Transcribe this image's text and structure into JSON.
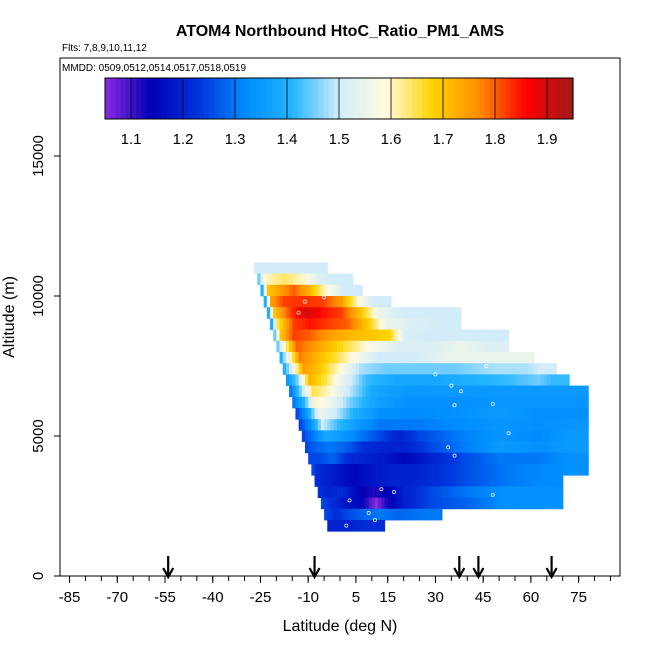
{
  "header": {
    "title": "ATOM4 Northbound HtoC_Ratio_PM1_AMS",
    "flights_note": "Flts: 7,8,9,10,11,12",
    "dates_note": "MMDD: 0509,0512,0514,0517,0518,0519"
  },
  "chart_data": {
    "type": "heatmap",
    "title": "ATOM4 Northbound HtoC_Ratio_PM1_AMS",
    "xlabel": "Latitude (deg N)",
    "ylabel": "Altitude (m)",
    "xlim": [
      -88,
      88
    ],
    "ylim": [
      0,
      18500
    ],
    "x_ticks": [
      -85,
      -70,
      -55,
      -40,
      -25,
      -10,
      5,
      15,
      30,
      45,
      60,
      75
    ],
    "x_tick_labels": [
      "-85",
      "-70",
      "-55",
      "-40",
      "-25",
      "-10",
      "5",
      "15",
      "30",
      "45",
      "60",
      "75"
    ],
    "x_minor_step": 5,
    "y_ticks": [
      0,
      5000,
      10000,
      15000
    ],
    "y_tick_labels": [
      "0",
      "5000",
      "10000",
      "15000"
    ],
    "colorbar": {
      "min": 1.05,
      "max": 1.95,
      "ticks": [
        1.1,
        1.2,
        1.3,
        1.4,
        1.5,
        1.6,
        1.7,
        1.8,
        1.9
      ],
      "tick_labels": [
        "1.1",
        "1.2",
        "1.3",
        "1.4",
        "1.5",
        "1.6",
        "1.7",
        "1.8",
        "1.9"
      ],
      "colors": [
        "#8a2be2",
        "#0000b4",
        "#0033dd",
        "#008cff",
        "#22b4ff",
        "#d2ecfa",
        "#fffbe0",
        "#ffd400",
        "#ff8c00",
        "#ff0000",
        "#9e1a1a"
      ]
    },
    "arrow_latitudes": [
      -54,
      -8,
      37.5,
      43.5,
      66.5
    ],
    "bands": [
      {
        "alt_min": 10800,
        "alt_max": 11200,
        "cells": [
          [
            -27,
            1.5
          ],
          [
            -10,
            1.5
          ]
        ]
      },
      {
        "alt_min": 10400,
        "alt_max": 10800,
        "cells": [
          [
            -26,
            1.45
          ],
          [
            -24,
            1.6
          ],
          [
            -18,
            1.64
          ],
          [
            -12,
            1.6
          ],
          [
            -7,
            1.52
          ],
          [
            -2,
            1.5
          ]
        ]
      },
      {
        "alt_min": 10000,
        "alt_max": 10400,
        "cells": [
          [
            -25,
            1.4
          ],
          [
            -23,
            1.7
          ],
          [
            -19,
            1.75
          ],
          [
            -15,
            1.8
          ],
          [
            -10,
            1.72
          ],
          [
            -5,
            1.6
          ],
          [
            1,
            1.5
          ]
        ]
      },
      {
        "alt_min": 9600,
        "alt_max": 10000,
        "cells": [
          [
            -24,
            1.4
          ],
          [
            -22,
            1.75
          ],
          [
            -18,
            1.82
          ],
          [
            -12,
            1.83
          ],
          [
            -6,
            1.82
          ],
          [
            0,
            1.75
          ],
          [
            5,
            1.6
          ],
          [
            10,
            1.5
          ]
        ]
      },
      {
        "alt_min": 9200,
        "alt_max": 9600,
        "cells": [
          [
            -23,
            1.4
          ],
          [
            -21,
            1.7
          ],
          [
            -16,
            1.82
          ],
          [
            -11,
            1.9
          ],
          [
            -6,
            1.85
          ],
          [
            0,
            1.82
          ],
          [
            6,
            1.7
          ],
          [
            12,
            1.55
          ],
          [
            20,
            1.5
          ],
          [
            32,
            1.5
          ]
        ]
      },
      {
        "alt_min": 8800,
        "alt_max": 9200,
        "cells": [
          [
            -22,
            1.4
          ],
          [
            -20,
            1.65
          ],
          [
            -15,
            1.82
          ],
          [
            -10,
            1.85
          ],
          [
            -4,
            1.82
          ],
          [
            2,
            1.8
          ],
          [
            8,
            1.7
          ],
          [
            14,
            1.55
          ],
          [
            22,
            1.52
          ],
          [
            32,
            1.5
          ]
        ]
      },
      {
        "alt_min": 8400,
        "alt_max": 8800,
        "cells": [
          [
            -21,
            1.45
          ],
          [
            -19,
            1.7
          ],
          [
            -15,
            1.82
          ],
          [
            -10,
            1.8
          ],
          [
            -4,
            1.75
          ],
          [
            2,
            1.72
          ],
          [
            8,
            1.7
          ],
          [
            15,
            1.68
          ],
          [
            20,
            1.52
          ],
          [
            26,
            1.5
          ],
          [
            38,
            1.5
          ],
          [
            47,
            1.5
          ]
        ]
      },
      {
        "alt_min": 8000,
        "alt_max": 8400,
        "cells": [
          [
            -20,
            1.45
          ],
          [
            -18,
            1.6
          ],
          [
            -14,
            1.8
          ],
          [
            -9,
            1.76
          ],
          [
            -3,
            1.7
          ],
          [
            3,
            1.64
          ],
          [
            10,
            1.57
          ],
          [
            18,
            1.52
          ],
          [
            28,
            1.52
          ],
          [
            38,
            1.55
          ],
          [
            47,
            1.52
          ]
        ]
      },
      {
        "alt_min": 7600,
        "alt_max": 8000,
        "cells": [
          [
            -19,
            1.4
          ],
          [
            -17,
            1.55
          ],
          [
            -13,
            1.78
          ],
          [
            -8,
            1.72
          ],
          [
            -2,
            1.66
          ],
          [
            4,
            1.58
          ],
          [
            12,
            1.5
          ],
          [
            22,
            1.5
          ],
          [
            34,
            1.55
          ],
          [
            47,
            1.55
          ],
          [
            55,
            1.55
          ]
        ]
      },
      {
        "alt_min": 7200,
        "alt_max": 7600,
        "cells": [
          [
            -18,
            1.4
          ],
          [
            -16,
            1.5
          ],
          [
            -12,
            1.75
          ],
          [
            -7,
            1.7
          ],
          [
            -1,
            1.6
          ],
          [
            6,
            1.48
          ],
          [
            14,
            1.45
          ],
          [
            24,
            1.45
          ],
          [
            36,
            1.45
          ],
          [
            48,
            1.48
          ],
          [
            58,
            1.48
          ],
          [
            62,
            1.5
          ]
        ]
      },
      {
        "alt_min": 6800,
        "alt_max": 7200,
        "cells": [
          [
            -17,
            1.35
          ],
          [
            -14,
            1.45
          ],
          [
            -10,
            1.72
          ],
          [
            -5,
            1.65
          ],
          [
            0,
            1.55
          ],
          [
            8,
            1.42
          ],
          [
            18,
            1.38
          ],
          [
            28,
            1.38
          ],
          [
            40,
            1.4
          ],
          [
            52,
            1.42
          ],
          [
            62,
            1.45
          ],
          [
            66,
            1.42
          ]
        ]
      },
      {
        "alt_min": 6400,
        "alt_max": 6800,
        "cells": [
          [
            -16,
            1.3
          ],
          [
            -13,
            1.45
          ],
          [
            -9,
            1.65
          ],
          [
            -4,
            1.6
          ],
          [
            2,
            1.5
          ],
          [
            10,
            1.38
          ],
          [
            20,
            1.35
          ],
          [
            30,
            1.35
          ],
          [
            42,
            1.35
          ],
          [
            56,
            1.35
          ],
          [
            66,
            1.35
          ],
          [
            72,
            1.35
          ]
        ]
      },
      {
        "alt_min": 6000,
        "alt_max": 6400,
        "cells": [
          [
            -15,
            1.3
          ],
          [
            -12,
            1.4
          ],
          [
            -8,
            1.6
          ],
          [
            -3,
            1.55
          ],
          [
            3,
            1.45
          ],
          [
            12,
            1.36
          ],
          [
            22,
            1.33
          ],
          [
            34,
            1.33
          ],
          [
            48,
            1.34
          ],
          [
            60,
            1.34
          ],
          [
            72,
            1.34
          ]
        ]
      },
      {
        "alt_min": 5600,
        "alt_max": 6000,
        "cells": [
          [
            -14,
            1.25
          ],
          [
            -11,
            1.35
          ],
          [
            -7,
            1.55
          ],
          [
            -2,
            1.5
          ],
          [
            4,
            1.4
          ],
          [
            12,
            1.33
          ],
          [
            22,
            1.32
          ],
          [
            36,
            1.33
          ],
          [
            50,
            1.35
          ],
          [
            62,
            1.33
          ],
          [
            72,
            1.33
          ]
        ]
      },
      {
        "alt_min": 5200,
        "alt_max": 5600,
        "cells": [
          [
            -13,
            1.25
          ],
          [
            -10,
            1.32
          ],
          [
            -6,
            1.5
          ],
          [
            -1,
            1.42
          ],
          [
            5,
            1.35
          ],
          [
            12,
            1.3
          ],
          [
            22,
            1.3
          ],
          [
            36,
            1.32
          ],
          [
            50,
            1.34
          ],
          [
            62,
            1.33
          ],
          [
            72,
            1.34
          ]
        ]
      },
      {
        "alt_min": 4800,
        "alt_max": 5200,
        "cells": [
          [
            -12,
            1.25
          ],
          [
            -9,
            1.3
          ],
          [
            -5,
            1.38
          ],
          [
            0,
            1.35
          ],
          [
            6,
            1.3
          ],
          [
            12,
            1.25
          ],
          [
            18,
            1.2
          ],
          [
            25,
            1.25
          ],
          [
            36,
            1.3
          ],
          [
            50,
            1.34
          ],
          [
            62,
            1.32
          ],
          [
            72,
            1.35
          ]
        ]
      },
      {
        "alt_min": 4400,
        "alt_max": 4800,
        "cells": [
          [
            -11,
            1.25
          ],
          [
            -8,
            1.28
          ],
          [
            -4,
            1.3
          ],
          [
            1,
            1.28
          ],
          [
            7,
            1.22
          ],
          [
            13,
            1.2
          ],
          [
            20,
            1.2
          ],
          [
            28,
            1.25
          ],
          [
            38,
            1.3
          ],
          [
            50,
            1.35
          ],
          [
            62,
            1.33
          ],
          [
            72,
            1.35
          ]
        ]
      },
      {
        "alt_min": 4000,
        "alt_max": 4400,
        "cells": [
          [
            -10,
            1.25
          ],
          [
            -7,
            1.25
          ],
          [
            -3,
            1.28
          ],
          [
            2,
            1.22
          ],
          [
            8,
            1.2
          ],
          [
            14,
            1.18
          ],
          [
            20,
            1.15
          ],
          [
            28,
            1.2
          ],
          [
            38,
            1.25
          ],
          [
            50,
            1.3
          ],
          [
            62,
            1.3
          ],
          [
            72,
            1.33
          ]
        ]
      },
      {
        "alt_min": 3600,
        "alt_max": 4000,
        "cells": [
          [
            -9,
            1.25
          ],
          [
            -6,
            1.22
          ],
          [
            -2,
            1.2
          ],
          [
            3,
            1.18
          ],
          [
            9,
            1.15
          ],
          [
            15,
            1.15
          ],
          [
            22,
            1.15
          ],
          [
            30,
            1.18
          ],
          [
            40,
            1.22
          ],
          [
            52,
            1.28
          ],
          [
            64,
            1.32
          ],
          [
            72,
            1.33
          ]
        ]
      },
      {
        "alt_min": 3200,
        "alt_max": 4000,
        "cells": [
          [
            -8,
            1.22
          ],
          [
            -5,
            1.2
          ],
          [
            -1,
            1.18
          ],
          [
            4,
            1.15
          ],
          [
            10,
            1.18
          ],
          [
            16,
            1.2
          ],
          [
            22,
            1.2
          ],
          [
            30,
            1.22
          ],
          [
            40,
            1.26
          ],
          [
            52,
            1.3
          ],
          [
            64,
            1.32
          ]
        ]
      },
      {
        "alt_min": 2800,
        "alt_max": 3200,
        "cells": [
          [
            -7,
            1.22
          ],
          [
            -4,
            1.2
          ],
          [
            0,
            1.22
          ],
          [
            5,
            1.15
          ],
          [
            10,
            1.12
          ],
          [
            15,
            1.15
          ],
          [
            20,
            1.2
          ],
          [
            28,
            1.25
          ],
          [
            40,
            1.3
          ],
          [
            52,
            1.33
          ],
          [
            64,
            1.33
          ]
        ]
      },
      {
        "alt_min": 2400,
        "alt_max": 2800,
        "cells": [
          [
            -6,
            1.25
          ],
          [
            -3,
            1.22
          ],
          [
            1,
            1.18
          ],
          [
            6,
            1.15
          ],
          [
            11,
            1.05
          ],
          [
            14,
            1.12
          ],
          [
            20,
            1.2
          ],
          [
            28,
            1.25
          ],
          [
            40,
            1.28
          ],
          [
            52,
            1.33
          ],
          [
            64,
            1.33
          ]
        ]
      },
      {
        "alt_min": 2000,
        "alt_max": 2400,
        "cells": [
          [
            -5,
            1.25
          ],
          [
            -2,
            1.22
          ],
          [
            2,
            1.25
          ],
          [
            7,
            1.28
          ],
          [
            12,
            1.3
          ],
          [
            18,
            1.28
          ],
          [
            26,
            1.3
          ]
        ]
      },
      {
        "alt_min": 1600,
        "alt_max": 2000,
        "cells": [
          [
            -4,
            1.2
          ],
          [
            2,
            1.2
          ],
          [
            8,
            1.22
          ]
        ]
      }
    ],
    "sample_points": [
      [
        -5,
        9950
      ],
      [
        -13,
        9400
      ],
      [
        -11,
        9800
      ],
      [
        30,
        7200
      ],
      [
        35,
        6800
      ],
      [
        38,
        6600
      ],
      [
        36,
        6100
      ],
      [
        48,
        6150
      ],
      [
        53,
        5100
      ],
      [
        34,
        4600
      ],
      [
        36,
        4300
      ],
      [
        13,
        3100
      ],
      [
        17,
        3000
      ],
      [
        9,
        2250
      ],
      [
        11,
        2000
      ],
      [
        3,
        2700
      ],
      [
        2,
        1800
      ],
      [
        4,
        1500
      ],
      [
        46,
        7500
      ],
      [
        48,
        2900
      ]
    ]
  }
}
